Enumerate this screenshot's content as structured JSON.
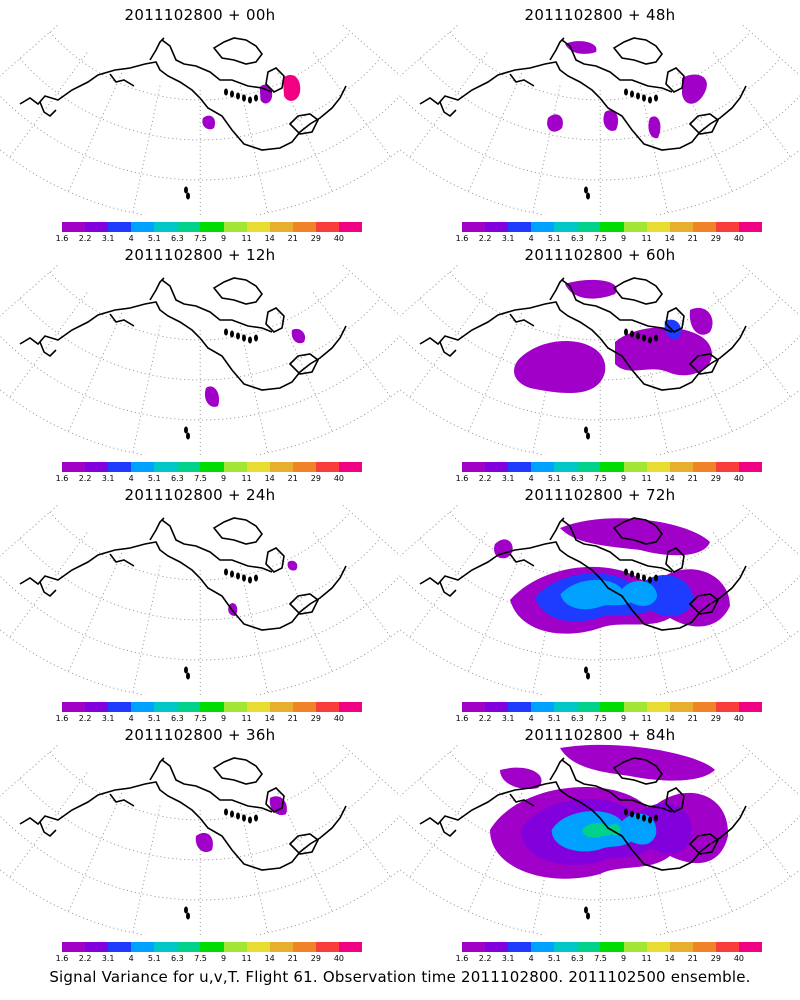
{
  "colorbar": {
    "labels": [
      "1.6",
      "2.2",
      "3.1",
      "4",
      "5.1",
      "6.3",
      "7.5",
      "9",
      "11",
      "14",
      "21",
      "29",
      "40"
    ],
    "colors": [
      "#a000c8",
      "#8200dc",
      "#1e3cff",
      "#00a0ff",
      "#00c8c8",
      "#00d28c",
      "#00dc00",
      "#a0e632",
      "#e6dc32",
      "#e6af2d",
      "#f08228",
      "#fa3c3c",
      "#f00082"
    ]
  },
  "panels": [
    {
      "title": "2011102800 + 00h",
      "forecast_hour": 0
    },
    {
      "title": "2011102800 + 48h",
      "forecast_hour": 48
    },
    {
      "title": "2011102800 + 12h",
      "forecast_hour": 12
    },
    {
      "title": "2011102800 + 60h",
      "forecast_hour": 60
    },
    {
      "title": "2011102800 + 24h",
      "forecast_hour": 24
    },
    {
      "title": "2011102800 + 72h",
      "forecast_hour": 72
    },
    {
      "title": "2011102800 + 36h",
      "forecast_hour": 36
    },
    {
      "title": "2011102800 + 84h",
      "forecast_hour": 84
    }
  ],
  "footer": "Signal Variance for u,v,T. Flight 61. Observation time 2011102800. 2011102500 ensemble."
}
